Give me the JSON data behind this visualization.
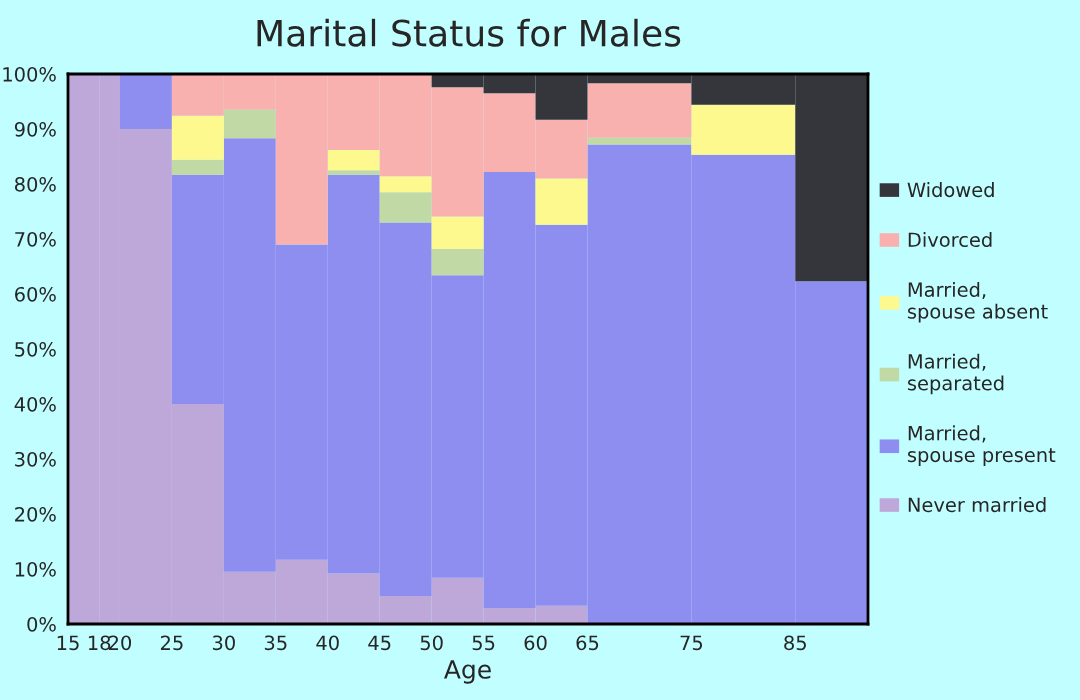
{
  "chart_data": {
    "type": "bar",
    "stacked": true,
    "title": "Marital Status for Males",
    "xlabel": "Age",
    "x": [
      16.5,
      19,
      22.5,
      27.5,
      32.5,
      37.5,
      42.5,
      47.5,
      52.5,
      57.5,
      62.5,
      70,
      80,
      88.5
    ],
    "xlim": [
      15,
      92
    ],
    "xticks": [
      15,
      18,
      20,
      25,
      30,
      35,
      40,
      45,
      50,
      55,
      60,
      65,
      75,
      85
    ],
    "ylim": [
      0,
      100
    ],
    "yticks": [
      {
        "value": 0,
        "label": "0%"
      },
      {
        "value": 10,
        "label": "10%"
      },
      {
        "value": 20,
        "label": "20%"
      },
      {
        "value": 30,
        "label": "30%"
      },
      {
        "value": 40,
        "label": "40%"
      },
      {
        "value": 50,
        "label": "50%"
      },
      {
        "value": 60,
        "label": "60%"
      },
      {
        "value": 70,
        "label": "70%"
      },
      {
        "value": 80,
        "label": "80%"
      },
      {
        "value": 90,
        "label": "90%"
      },
      {
        "value": 100,
        "label": "100%"
      }
    ],
    "grid": false,
    "legend": "right",
    "series": [
      {
        "name": "Never married",
        "color": "#bea8da",
        "values": [
          100,
          100,
          90,
          40,
          9.5,
          11.7,
          9.2,
          5.1,
          8.4,
          2.9,
          3.3,
          0,
          0,
          0
        ]
      },
      {
        "name": "Married,\nspouse present",
        "color": "#8e8ef0",
        "values": [
          0,
          0,
          10,
          41.7,
          78.8,
          57.3,
          72.5,
          67.9,
          55,
          79.3,
          69.3,
          87.2,
          85.3,
          62.3
        ]
      },
      {
        "name": "Married,\nseparated",
        "color": "#c1d9a4",
        "values": [
          0,
          0,
          0,
          2.7,
          5.2,
          0,
          0.8,
          5.5,
          4.8,
          0,
          0,
          1.2,
          0,
          0
        ]
      },
      {
        "name": "Married,\nspouse absent",
        "color": "#fdf98f",
        "values": [
          0,
          0,
          0,
          8,
          0,
          0,
          3.7,
          2.9,
          5.9,
          0,
          8.4,
          0,
          9.1,
          0
        ]
      },
      {
        "name": "Divorced",
        "color": "#f9b1b0",
        "values": [
          0,
          0,
          0,
          7.6,
          6.5,
          31,
          13.8,
          18.6,
          23.5,
          14.3,
          10.7,
          9.9,
          0,
          0
        ]
      },
      {
        "name": "Widowed",
        "color": "#35363c",
        "values": [
          0,
          0,
          0,
          0,
          0,
          0,
          0,
          0,
          2.4,
          3.5,
          8.3,
          1.7,
          5.6,
          37.7
        ]
      }
    ]
  }
}
